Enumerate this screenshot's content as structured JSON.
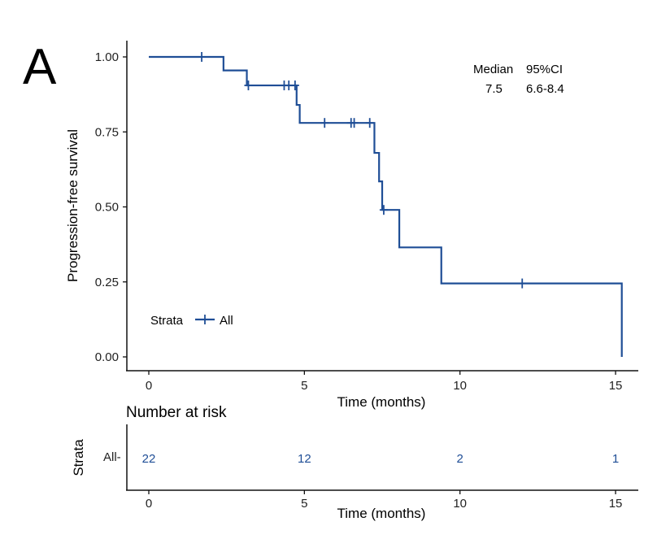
{
  "panel_label": "A",
  "colors": {
    "curve": "#1f4e96",
    "axis": "#111111",
    "risk_text": "#1f4e96"
  },
  "chart_data": {
    "type": "line",
    "subtype": "kaplan-meier",
    "xlabel": "Time (months)",
    "ylabel": "Progression-free survival",
    "xlim": [
      0,
      15
    ],
    "ylim": [
      0,
      1
    ],
    "x_ticks": [
      0,
      5,
      10,
      15
    ],
    "y_ticks": [
      0.0,
      0.25,
      0.5,
      0.75,
      1.0
    ],
    "y_tick_labels": [
      "0.00",
      "0.25",
      "0.50",
      "0.75",
      "1.00"
    ],
    "grid": false,
    "legend": {
      "title": "Strata",
      "entries": [
        "All"
      ],
      "placement": "bottom-left"
    },
    "series": [
      {
        "name": "All",
        "step_x": [
          0,
          2.4,
          3.15,
          4.75,
          4.85,
          7.25,
          7.4,
          7.5,
          8.05,
          9.4,
          15.2
        ],
        "step_y": [
          1.0,
          0.955,
          0.905,
          0.84,
          0.78,
          0.68,
          0.585,
          0.49,
          0.365,
          0.245,
          0.0
        ],
        "censor_x": [
          1.7,
          3.2,
          4.35,
          4.5,
          4.7,
          5.65,
          6.5,
          6.6,
          7.1,
          7.55,
          12.0
        ],
        "censor_y": [
          1.0,
          0.905,
          0.905,
          0.905,
          0.905,
          0.78,
          0.78,
          0.78,
          0.78,
          0.49,
          0.245
        ]
      }
    ],
    "annotation": {
      "header_median": "Median",
      "header_ci": "95%CI",
      "median": "7.5",
      "ci": "6.6-8.4"
    },
    "risk_table": {
      "title": "Number at risk",
      "ylabel": "Strata",
      "xlabel": "Time (months)",
      "strata_label": "All-",
      "times": [
        0,
        5,
        10,
        15
      ],
      "counts": [
        22,
        12,
        2,
        1
      ]
    }
  }
}
